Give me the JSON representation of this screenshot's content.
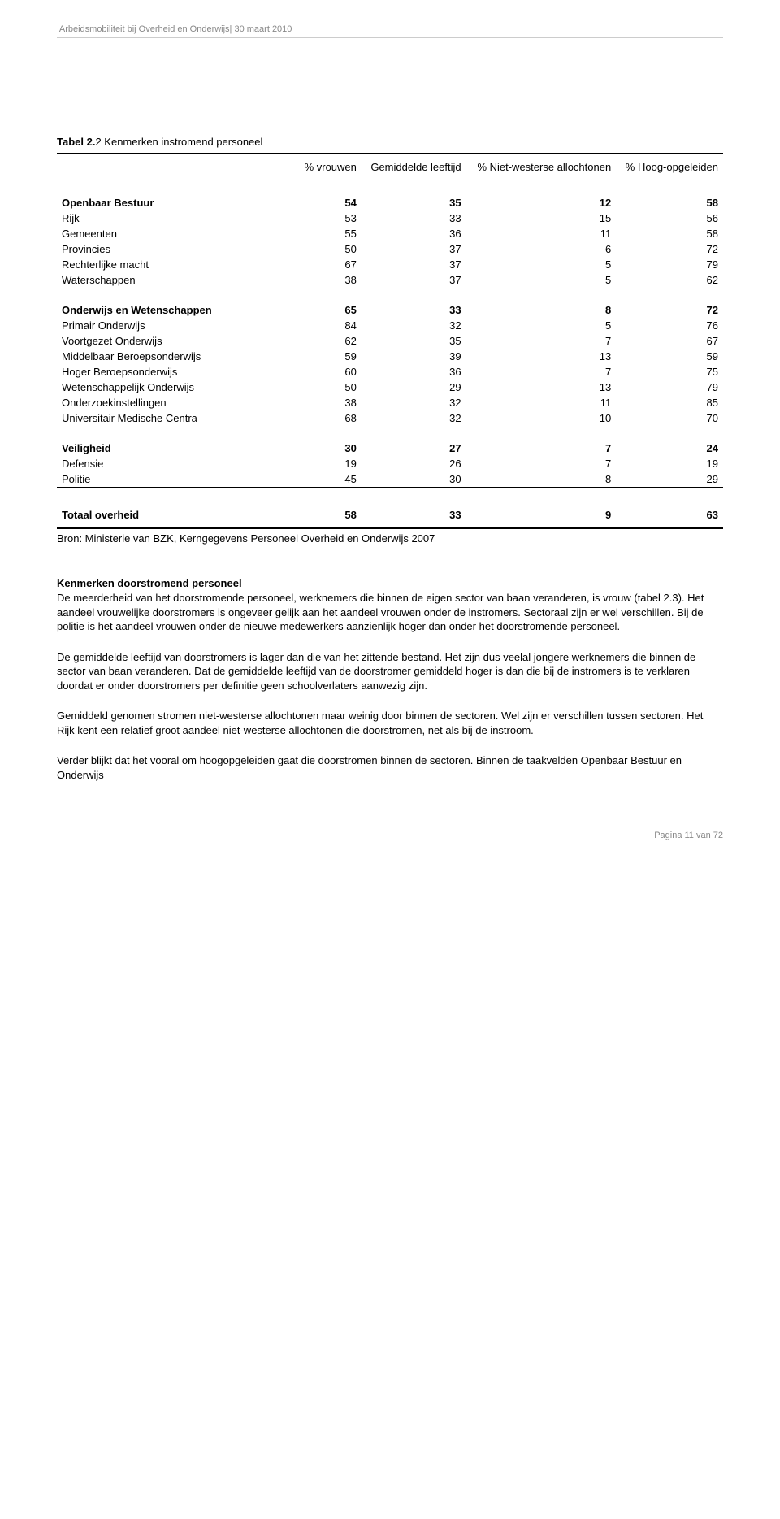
{
  "doc_header": "|Arbeidsmobiliteit bij Overheid en Onderwijs| 30 maart 2010",
  "table": {
    "type": "table",
    "title_prefix": "Tabel 2.",
    "title_rest": "2 Kenmerken instromend personeel",
    "background_color": "#ffffff",
    "border_color": "#000000",
    "font_size": 13,
    "columns": [
      "",
      "% vrouwen",
      "Gemiddelde leeftijd",
      "% Niet-westerse allochtonen",
      "% Hoog-opgeleiden"
    ],
    "rows": [
      {
        "gap": true
      },
      {
        "section": true,
        "cells": [
          "Openbaar Bestuur",
          "54",
          "35",
          "12",
          "58"
        ]
      },
      {
        "cells": [
          "Rijk",
          "53",
          "33",
          "15",
          "56"
        ]
      },
      {
        "cells": [
          "Gemeenten",
          "55",
          "36",
          "11",
          "58"
        ]
      },
      {
        "cells": [
          "Provincies",
          "50",
          "37",
          "6",
          "72"
        ]
      },
      {
        "cells": [
          "Rechterlijke macht",
          "67",
          "37",
          "5",
          "79"
        ]
      },
      {
        "cells": [
          "Waterschappen",
          "38",
          "37",
          "5",
          "62"
        ]
      },
      {
        "gap": true
      },
      {
        "section": true,
        "cells": [
          "Onderwijs en Wetenschappen",
          "65",
          "33",
          "8",
          "72"
        ]
      },
      {
        "cells": [
          "Primair Onderwijs",
          "84",
          "32",
          "5",
          "76"
        ]
      },
      {
        "cells": [
          "Voortgezet Onderwijs",
          "62",
          "35",
          "7",
          "67"
        ]
      },
      {
        "cells": [
          "Middelbaar Beroepsonderwijs",
          "59",
          "39",
          "13",
          "59"
        ]
      },
      {
        "cells": [
          "Hoger Beroepsonderwijs",
          "60",
          "36",
          "7",
          "75"
        ]
      },
      {
        "cells": [
          "Wetenschappelijk Onderwijs",
          "50",
          "29",
          "13",
          "79"
        ]
      },
      {
        "cells": [
          "Onderzoekinstellingen",
          "38",
          "32",
          "11",
          "85"
        ]
      },
      {
        "cells": [
          "Universitair Medische Centra",
          "68",
          "32",
          "10",
          "70"
        ]
      },
      {
        "gap": true
      },
      {
        "section": true,
        "cells": [
          "Veiligheid",
          "30",
          "27",
          "7",
          "24"
        ]
      },
      {
        "cells": [
          "Defensie",
          "19",
          "26",
          "7",
          "19"
        ]
      },
      {
        "cells": [
          "Politie",
          "45",
          "30",
          "8",
          "29"
        ]
      },
      {
        "gap": true,
        "sep": true
      }
    ],
    "total_row": [
      "Totaal overheid",
      "58",
      "33",
      "9",
      "63"
    ],
    "source": "Bron: Ministerie van BZK, Kerngegevens Personeel Overheid en Onderwijs 2007"
  },
  "heading": "Kenmerken doorstromend personeel",
  "paragraphs": [
    "De meerderheid van het doorstromende personeel, werknemers die binnen de eigen sector van baan veranderen, is vrouw (tabel 2.3). Het aandeel vrouwelijke doorstromers is ongeveer gelijk aan het aandeel vrouwen onder de instromers. Sectoraal zijn er wel verschillen. Bij de politie is het aandeel vrouwen onder de nieuwe medewerkers aanzienlijk hoger dan onder het doorstromende personeel.",
    "De gemiddelde leeftijd van doorstromers is lager dan die van het zittende bestand. Het zijn dus veelal jongere werknemers die binnen de sector van baan veranderen. Dat de gemiddelde leeftijd van de doorstromer gemiddeld hoger is dan die bij de instromers is te verklaren doordat er onder doorstromers per definitie geen schoolverlaters aanwezig zijn.",
    "Gemiddeld genomen stromen niet-westerse allochtonen maar weinig door binnen de sectoren. Wel zijn er verschillen tussen sectoren. Het Rijk kent een relatief groot aandeel niet-westerse allochtonen die doorstromen, net als bij de instroom.",
    "Verder blijkt dat het vooral om hoogopgeleiden gaat die doorstromen binnen de sectoren. Binnen de taakvelden Openbaar Bestuur en Onderwijs"
  ],
  "footer": "Pagina 11 van 72"
}
